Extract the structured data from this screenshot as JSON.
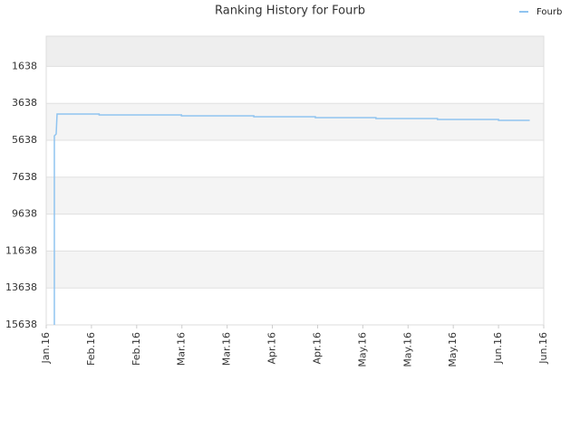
{
  "chart_data": {
    "type": "line",
    "title": "Ranking History for Fourb",
    "x": [
      0.18,
      0.18,
      0.22,
      0.24,
      1.17,
      1.17,
      2.99,
      2.99,
      4.59,
      4.59,
      5.95,
      5.95,
      7.29,
      7.29,
      8.65,
      8.65,
      10.0,
      10.0,
      10.69
    ],
    "series": [
      {
        "name": "Fourb",
        "color": "#90c4f0",
        "values": [
          15638,
          5400,
          5300,
          4216,
          4216,
          4265,
          4265,
          4314,
          4314,
          4363,
          4363,
          4412,
          4412,
          4461,
          4461,
          4510,
          4510,
          4559,
          4559
        ]
      }
    ],
    "xlim": [
      0,
      11
    ],
    "xticks": [
      {
        "value": 0,
        "label": "Jan.16"
      },
      {
        "value": 1,
        "label": "Feb.16"
      },
      {
        "value": 2,
        "label": "Feb.16"
      },
      {
        "value": 3,
        "label": "Mar.16"
      },
      {
        "value": 4,
        "label": "Mar.16"
      },
      {
        "value": 5,
        "label": "Apr.16"
      },
      {
        "value": 6,
        "label": "Apr.16"
      },
      {
        "value": 7,
        "label": "May.16"
      },
      {
        "value": 8,
        "label": "May.16"
      },
      {
        "value": 9,
        "label": "May.16"
      },
      {
        "value": 10,
        "label": "Jun.16"
      },
      {
        "value": 11,
        "label": "Jun.16"
      }
    ],
    "ylim": [
      15638,
      0
    ],
    "yticks": [
      1638,
      3638,
      5638,
      7638,
      9638,
      11638,
      13638,
      15638
    ],
    "grid": true,
    "legend": "top-right"
  }
}
